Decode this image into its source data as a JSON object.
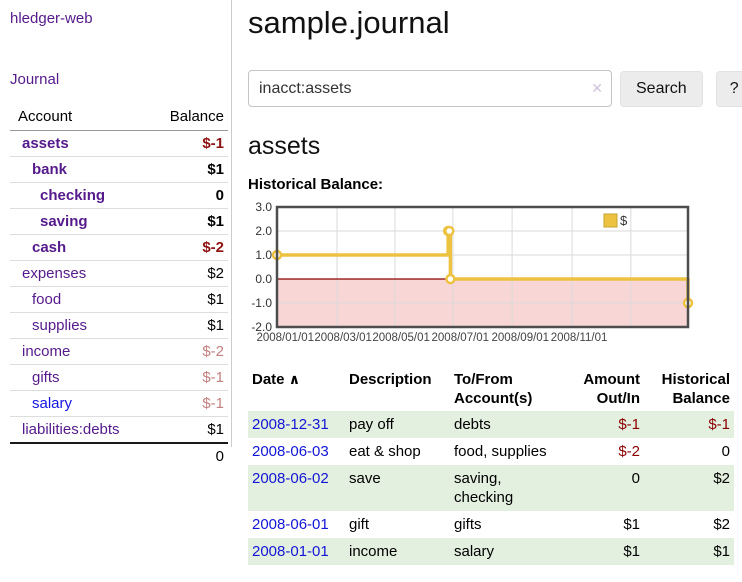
{
  "app": {
    "brand": "hledger-web"
  },
  "sidebar": {
    "journal_link": "Journal",
    "accounts": {
      "header": {
        "account": "Account",
        "balance": "Balance"
      },
      "rows": [
        {
          "name": "assets",
          "balance": "$-1"
        },
        {
          "name": "bank",
          "balance": "$1"
        },
        {
          "name": "checking",
          "balance": "0"
        },
        {
          "name": "saving",
          "balance": "$1"
        },
        {
          "name": "cash",
          "balance": "$-2"
        },
        {
          "name": "expenses",
          "balance": "$2"
        },
        {
          "name": "food",
          "balance": "$1"
        },
        {
          "name": "supplies",
          "balance": "$1"
        },
        {
          "name": "income",
          "balance": "$-2"
        },
        {
          "name": "gifts",
          "balance": "$-1"
        },
        {
          "name": "salary",
          "balance": "$-1"
        },
        {
          "name": "liabilities:debts",
          "balance": "$1"
        }
      ],
      "total": "0"
    }
  },
  "main": {
    "title": "sample.journal",
    "search": {
      "value": "inacct:assets",
      "clear_icon": "✕",
      "search_button": "Search",
      "help_button": "?"
    },
    "account_heading": "assets",
    "chart_title": "Historical Balance:"
  },
  "chart_data": {
    "type": "line",
    "style": "step",
    "title": "Historical Balance:",
    "series": [
      {
        "name": "$",
        "color": "#edc240",
        "points": [
          [
            "2008-01-01",
            1
          ],
          [
            "2008-06-01",
            2
          ],
          [
            "2008-06-02",
            2
          ],
          [
            "2008-06-03",
            0
          ],
          [
            "2008-12-31",
            -1
          ]
        ]
      }
    ],
    "xlim": [
      "2008-01-01",
      "2008-12-31"
    ],
    "ylim": [
      -2,
      3
    ],
    "ytick_values": [
      3,
      2,
      1,
      0,
      -1,
      -2
    ],
    "ytick_labels": [
      "3.0",
      "2.0",
      "1.0",
      "0.0",
      "-1.0",
      "-2.0"
    ],
    "xtick_labels": [
      "2008/01/01",
      "2008/03/01",
      "2008/05/01",
      "2008/07/01",
      "2008/09/01",
      "2008/11/01"
    ],
    "legend": {
      "label": "$",
      "position": "top-right"
    },
    "grid_on": true,
    "zero_line_color": "#8b0000",
    "negative_region_color": "#f9d6d6",
    "grid_color": "#dadada",
    "border_color": "#4d4d4d",
    "marker": {
      "fill": "#ffffff",
      "stroke": "#edc240"
    }
  },
  "register": {
    "headers": {
      "date": "Date",
      "sort_icon": "∧",
      "description": "Description",
      "account": "To/From Account(s)",
      "amount": "Amount Out/In",
      "balance": "Historical Balance"
    },
    "rows": [
      {
        "date": "2008-12-31",
        "description": "pay off",
        "accounts": "debts",
        "amount": "$-1",
        "balance": "$-1"
      },
      {
        "date": "2008-06-03",
        "description": "eat & shop",
        "accounts": "food, supplies",
        "amount": "$-2",
        "balance": "0"
      },
      {
        "date": "2008-06-02",
        "description": "save",
        "accounts": "saving, checking",
        "amount": "0",
        "balance": "$2"
      },
      {
        "date": "2008-06-01",
        "description": "gift",
        "accounts": "gifts",
        "amount": "$1",
        "balance": "$2"
      },
      {
        "date": "2008-01-01",
        "description": "income",
        "accounts": "salary",
        "amount": "$1",
        "balance": "$1"
      }
    ]
  },
  "colors": {
    "link_purple": "#551a8b",
    "link_blue": "#1316d6",
    "negative_strong": "#8e1212",
    "negative_soft": "#c2807f",
    "row_shade_green": "#e3efdf",
    "series_yellow": "#edc240",
    "negative_region_pink": "#f9d6d6",
    "zero_line_red": "#8b0000"
  }
}
